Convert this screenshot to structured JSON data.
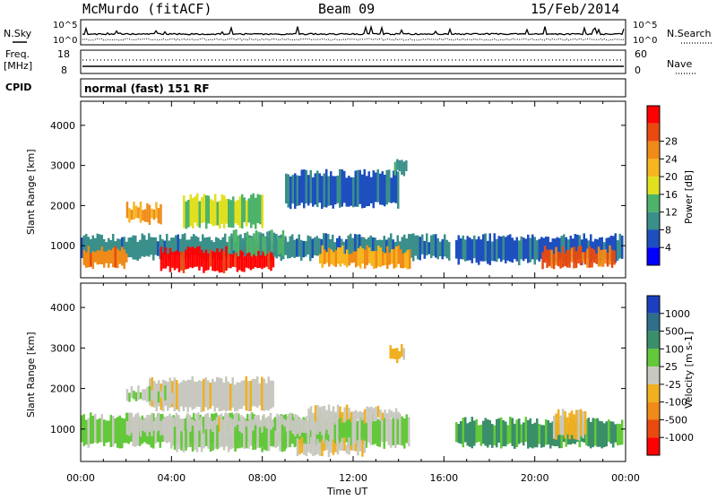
{
  "header": {
    "station": "McMurdo (fitACF)",
    "beam": "Beam 09",
    "date": "15/Feb/2014"
  },
  "summary_panel": {
    "left_label_top": "N.Sky",
    "sky_ticks": [
      "10^5",
      "10^0"
    ],
    "right_label_top": "N.Search",
    "right_ticks_top": [
      "10^5",
      "10^0"
    ],
    "freq_label": "Freq.",
    "freq_unit": "[MHz]",
    "freq_ticks": [
      "18",
      "8"
    ],
    "nave_label": "Nave",
    "nave_ticks": [
      "60",
      "0"
    ],
    "cpid_label": "CPID",
    "cpid_value": "normal (fast) 151 RF"
  },
  "axes": {
    "x_ticks": [
      "00:00",
      "04:00",
      "08:00",
      "12:00",
      "16:00",
      "20:00",
      "00:00"
    ],
    "x_label": "Time UT",
    "y_ticks": [
      "1000",
      "2000",
      "3000",
      "4000"
    ],
    "y_label": "Slant Range [km]"
  },
  "power_scale": {
    "label": "Power [dB]",
    "ticks": [
      "4",
      "8",
      "12",
      "16",
      "20",
      "24",
      "28"
    ],
    "colors": [
      "#0000ff",
      "#1e4fbf",
      "#3a8f8a",
      "#4db36a",
      "#e0e020",
      "#f7b51f",
      "#f08a18",
      "#e84a10",
      "#ff0000"
    ]
  },
  "velocity_scale": {
    "label": "Velocity [m s-1]",
    "ticks": [
      "1000",
      "500",
      "100",
      "25",
      "-25",
      "-100",
      "-500",
      "-1000"
    ],
    "colors": [
      "#1c3fbf",
      "#2f6f8a",
      "#3a8f6a",
      "#63c83a",
      "#c8c8c0",
      "#f0b020",
      "#f08a18",
      "#e84a10",
      "#ff0000"
    ]
  },
  "chart_data": [
    {
      "type": "heatmap",
      "title": "Power",
      "xlabel": "Time UT",
      "ylabel": "Slant Range [km]",
      "xlim": [
        0,
        24
      ],
      "ylim": [
        200,
        4600
      ],
      "value_label": "Power [dB]",
      "value_range": [
        0,
        30
      ],
      "regions": [
        {
          "t": [
            0,
            16.2
          ],
          "r": [
            700,
            1200
          ],
          "value": 8
        },
        {
          "t": [
            3.5,
            8.5
          ],
          "r": [
            400,
            900
          ],
          "value": 28
        },
        {
          "t": [
            0.1,
            2.0
          ],
          "r": [
            500,
            900
          ],
          "value": 22
        },
        {
          "t": [
            10.5,
            14.5
          ],
          "r": [
            500,
            900
          ],
          "value": 20
        },
        {
          "t": [
            2.0,
            3.5
          ],
          "r": [
            1600,
            2000
          ],
          "value": 20
        },
        {
          "t": [
            4.5,
            8.0
          ],
          "r": [
            1500,
            2200
          ],
          "value": 14
        },
        {
          "t": [
            9.0,
            14.0
          ],
          "r": [
            2000,
            2800
          ],
          "value": 6
        },
        {
          "t": [
            13.8,
            14.3
          ],
          "r": [
            2800,
            3200
          ],
          "value": 10
        },
        {
          "t": [
            16.5,
            23.9
          ],
          "r": [
            600,
            1200
          ],
          "value": 6
        },
        {
          "t": [
            20.3,
            23.5
          ],
          "r": [
            500,
            900
          ],
          "value": 24
        },
        {
          "t": [
            6.5,
            9.0
          ],
          "r": [
            800,
            1300
          ],
          "value": 10
        }
      ]
    },
    {
      "type": "heatmap",
      "title": "Velocity",
      "xlabel": "Time UT",
      "ylabel": "Slant Range [km]",
      "xlim": [
        0,
        24
      ],
      "ylim": [
        200,
        4600
      ],
      "value_label": "Velocity [m s-1]",
      "value_range": [
        -1000,
        1000
      ],
      "regions": [
        {
          "t": [
            0,
            14.5
          ],
          "r": [
            600,
            1300
          ],
          "value": 150
        },
        {
          "t": [
            2.0,
            11.0
          ],
          "r": [
            900,
            1300
          ],
          "value": 0
        },
        {
          "t": [
            4.0,
            9.0
          ],
          "r": [
            500,
            1000
          ],
          "value": 100
        },
        {
          "t": [
            9.5,
            12.5
          ],
          "r": [
            400,
            700
          ],
          "value": -80
        },
        {
          "t": [
            3.0,
            8.5
          ],
          "r": [
            1500,
            2200
          ],
          "value": -60
        },
        {
          "t": [
            2.0,
            4.0
          ],
          "r": [
            1700,
            2000
          ],
          "value": 80
        },
        {
          "t": [
            13.6,
            14.2
          ],
          "r": [
            2700,
            3000
          ],
          "value": -150
        },
        {
          "t": [
            16.5,
            23.9
          ],
          "r": [
            600,
            1200
          ],
          "value": 400
        },
        {
          "t": [
            20.8,
            22.2
          ],
          "r": [
            800,
            1400
          ],
          "value": -150
        },
        {
          "t": [
            10.0,
            14.0
          ],
          "r": [
            1200,
            1500
          ],
          "value": -30
        }
      ]
    }
  ]
}
